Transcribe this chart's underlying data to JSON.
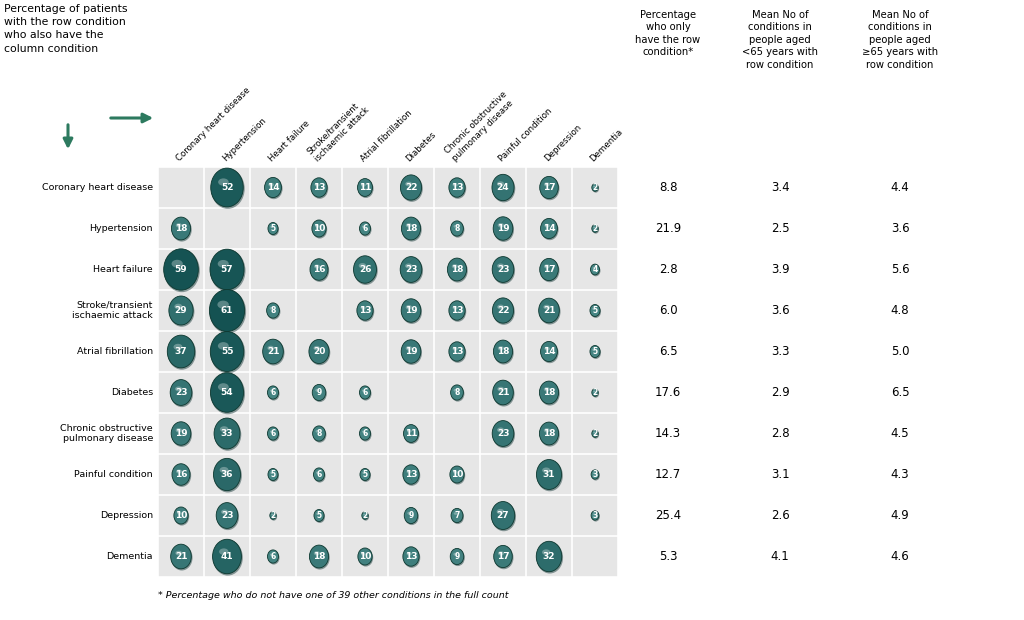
{
  "conditions_rows": [
    "Coronary heart disease",
    "Hypertension",
    "Heart failure",
    "Stroke/transient\nischaemic attack",
    "Atrial fibrillation",
    "Diabetes",
    "Chronic obstructive\npulmonary disease",
    "Painful condition",
    "Depression",
    "Dementia"
  ],
  "col_headers": [
    "Coronary heart disease",
    "Hypertension",
    "Heart failure",
    "Stroke/transient\nischaemic attack",
    "Atrial fibrillation",
    "Diabetes",
    "Chronic obstructive\npulmonary disease",
    "Painful condition",
    "Depression",
    "Dementia"
  ],
  "matrix": [
    [
      null,
      52,
      14,
      13,
      11,
      22,
      13,
      24,
      17,
      2
    ],
    [
      18,
      null,
      5,
      10,
      6,
      18,
      8,
      19,
      14,
      2
    ],
    [
      59,
      57,
      null,
      16,
      26,
      23,
      18,
      23,
      17,
      4
    ],
    [
      29,
      61,
      8,
      null,
      13,
      19,
      13,
      22,
      21,
      5
    ],
    [
      37,
      55,
      21,
      20,
      null,
      19,
      13,
      18,
      14,
      5
    ],
    [
      23,
      54,
      6,
      9,
      6,
      null,
      8,
      21,
      18,
      2
    ],
    [
      19,
      33,
      6,
      8,
      6,
      11,
      null,
      23,
      18,
      2
    ],
    [
      16,
      36,
      5,
      6,
      5,
      13,
      10,
      null,
      31,
      3
    ],
    [
      10,
      23,
      2,
      5,
      2,
      9,
      7,
      27,
      null,
      3
    ],
    [
      21,
      41,
      6,
      18,
      10,
      13,
      9,
      17,
      32,
      null
    ]
  ],
  "pct_only": [
    8.8,
    21.9,
    2.8,
    6.0,
    6.5,
    17.6,
    14.3,
    12.7,
    25.4,
    5.3
  ],
  "mean_lt65": [
    3.4,
    2.5,
    3.9,
    3.6,
    3.3,
    2.9,
    2.8,
    3.1,
    2.6,
    4.1
  ],
  "mean_ge65": [
    4.4,
    3.6,
    5.6,
    4.8,
    5.0,
    6.5,
    4.5,
    4.3,
    4.9,
    4.6
  ],
  "bg_color": "#e6e6e6",
  "arrow_color": "#2d7a5f",
  "max_bubble_value": 61
}
